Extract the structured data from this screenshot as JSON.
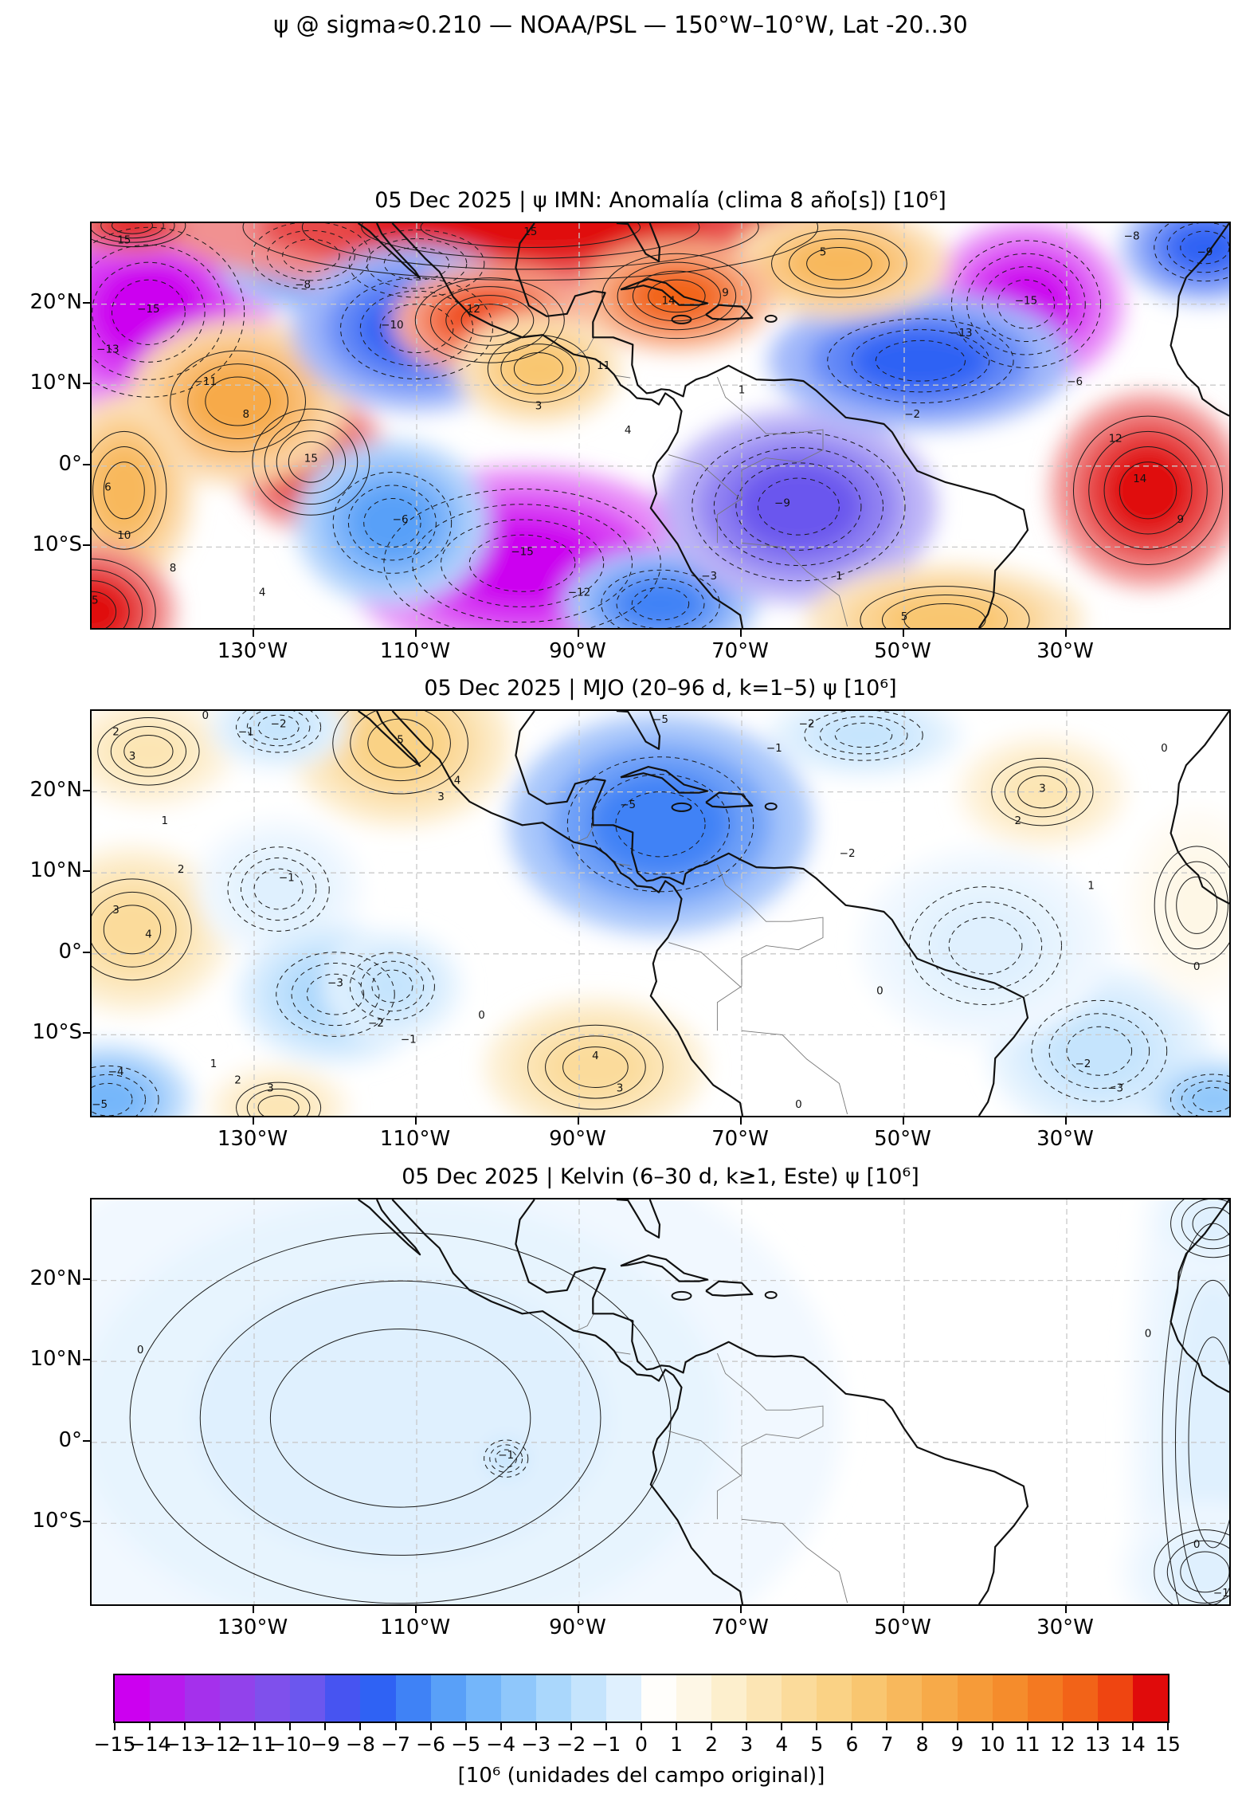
{
  "figure": {
    "main_title": "ψ @ sigma≈0.210 — NOAA/PSL — 150°W–10°W, Lat -20..30"
  },
  "colorbar": {
    "label": "[10⁶ (unidades del campo original)]",
    "tick_labels": [
      "−15",
      "−14",
      "−13",
      "−12",
      "−11",
      "−10",
      "−9",
      "−8",
      "−7",
      "−6",
      "−5",
      "−4",
      "−3",
      "−2",
      "−1",
      "0",
      "1",
      "2",
      "3",
      "4",
      "5",
      "6",
      "7",
      "8",
      "9",
      "10",
      "11",
      "12",
      "13",
      "14",
      "15"
    ],
    "colors": [
      "#CC00F0",
      "#B81AEE",
      "#A530EC",
      "#9242EB",
      "#7F50EC",
      "#6B57EE",
      "#4754F1",
      "#2F62F4",
      "#3F82F6",
      "#59A0F8",
      "#74B6FA",
      "#8FC7FB",
      "#AAD7FC",
      "#C5E4FD",
      "#DFF0FE",
      "#FFFEFB",
      "#FEF7E6",
      "#FDEFCD",
      "#FCE5B4",
      "#FBDB9B",
      "#FAD285",
      "#F9C670",
      "#F8B85C",
      "#F7AA49",
      "#F69B39",
      "#F58C2C",
      "#F47921",
      "#F26318",
      "#EF4511",
      "#E00B0B"
    ]
  },
  "chart_data": {
    "type": "heatmap",
    "subtype": "filled_contour_map",
    "projection": "lon-lat",
    "lon_range": [
      -150,
      -10
    ],
    "lat_range": [
      -20,
      30
    ],
    "contour_levels_range": [
      -15,
      15
    ],
    "contour_level_step": 1,
    "units": "10⁶ (unidades del campo original)",
    "lon_ticks": {
      "values": [
        -130,
        -110,
        -90,
        -70,
        -50,
        -30
      ],
      "labels": [
        "130°W",
        "110°W",
        "90°W",
        "70°W",
        "50°W",
        "30°W"
      ]
    },
    "lat_ticks": {
      "values": [
        20,
        10,
        0,
        -10
      ],
      "labels": [
        "20°N",
        "10°N",
        "0°",
        "10°S"
      ]
    },
    "panels": [
      {
        "id": "anomaly",
        "title": "05 Dec 2025 | ψ IMN: Anomalía (clima 8 año[s]) [10⁶]",
        "features_format": [
          "lon",
          "lat",
          "peak_value_1e6",
          "rx_deg",
          "ry_deg"
        ],
        "features": [
          [
            -143,
            19,
            -15,
            9,
            8
          ],
          [
            -123,
            26,
            -7,
            7,
            4
          ],
          [
            -110,
            25,
            -6,
            8,
            4
          ],
          [
            -96,
            29.5,
            15,
            27,
            5
          ],
          [
            -145,
            29.7,
            14,
            5,
            2
          ],
          [
            -123,
            0.5,
            15,
            5.5,
            5
          ],
          [
            -132,
            8,
            8,
            8,
            6
          ],
          [
            -146,
            -3,
            7,
            5,
            7
          ],
          [
            -150,
            -18,
            15,
            6,
            5
          ],
          [
            -97,
            -12,
            -16,
            13,
            7
          ],
          [
            -113,
            -7,
            -6,
            7,
            6
          ],
          [
            -80,
            -17,
            -7,
            7,
            4
          ],
          [
            -110,
            17,
            -8,
            9,
            6
          ],
          [
            -101,
            18,
            13,
            7,
            4
          ],
          [
            -95,
            12,
            6,
            6,
            4
          ],
          [
            -63,
            -5,
            -10,
            10,
            7
          ],
          [
            -35,
            20,
            -15,
            7,
            6
          ],
          [
            -48,
            13,
            -8,
            11,
            5
          ],
          [
            -20,
            -3,
            15,
            7,
            7
          ],
          [
            -45,
            -19,
            6,
            10,
            4
          ],
          [
            -13,
            27,
            -8,
            6,
            4
          ],
          [
            -58,
            25,
            7,
            8,
            4
          ],
          [
            -78,
            21,
            12,
            7,
            4
          ]
        ],
        "contour_labels": [
          [
            -146,
            27.5,
            "15"
          ],
          [
            -96,
            28.5,
            "15"
          ],
          [
            -123,
            0.5,
            "15"
          ],
          [
            -131,
            6,
            "8"
          ],
          [
            -143,
            19,
            "−15"
          ],
          [
            -148,
            14,
            "−13"
          ],
          [
            -136,
            10,
            "−11"
          ],
          [
            -124,
            22,
            "−8"
          ],
          [
            -113,
            17,
            "−10"
          ],
          [
            -103,
            19,
            "12"
          ],
          [
            -97,
            -11,
            "−15"
          ],
          [
            -90,
            -16,
            "−12"
          ],
          [
            -112,
            -7,
            "−6"
          ],
          [
            -148,
            -3,
            "6"
          ],
          [
            -146,
            -9,
            "10"
          ],
          [
            -150,
            -17,
            "15"
          ],
          [
            -140,
            -13,
            "8"
          ],
          [
            -129,
            -16,
            "4"
          ],
          [
            -65,
            -5,
            "−9"
          ],
          [
            -74,
            -14,
            "−3"
          ],
          [
            -50,
            -19,
            "5"
          ],
          [
            -58,
            -14,
            "1"
          ],
          [
            -35,
            20,
            "−15"
          ],
          [
            -43,
            16,
            "−13"
          ],
          [
            -29,
            10,
            "−6"
          ],
          [
            -49,
            6,
            "−2"
          ],
          [
            -21,
            -2,
            "14"
          ],
          [
            -16,
            -7,
            "9"
          ],
          [
            -24,
            3,
            "12"
          ],
          [
            -13,
            26,
            "−9"
          ],
          [
            -22,
            28,
            "−8"
          ],
          [
            -60,
            26,
            "5"
          ],
          [
            -72,
            21,
            "9"
          ],
          [
            -79,
            20,
            "14"
          ],
          [
            -87,
            12,
            "11"
          ],
          [
            -95,
            7,
            "3"
          ],
          [
            -84,
            4,
            "4"
          ],
          [
            -70,
            9,
            "1"
          ]
        ]
      },
      {
        "id": "mjo",
        "title": "05 Dec 2025 | MJO (20–96 d, k=1–5) ψ [10⁶]",
        "features_format": [
          "lon",
          "lat",
          "peak_value_1e6",
          "rx_deg",
          "ry_deg"
        ],
        "features": [
          [
            -143,
            25,
            3,
            6,
            4
          ],
          [
            -112,
            26,
            5,
            8,
            6
          ],
          [
            -127,
            28,
            -2,
            5,
            3
          ],
          [
            -145,
            3,
            4,
            7,
            6
          ],
          [
            -127,
            8,
            -1,
            6,
            5
          ],
          [
            -120,
            -5,
            -3,
            7,
            5
          ],
          [
            -113,
            -4,
            -2,
            5,
            4
          ],
          [
            -148,
            -18,
            -5,
            6,
            4
          ],
          [
            -127,
            -19,
            3,
            5,
            3
          ],
          [
            -80,
            16,
            -7,
            11,
            8
          ],
          [
            -88,
            -14,
            4,
            8,
            5
          ],
          [
            -33,
            20,
            3,
            6,
            4
          ],
          [
            -26,
            -12,
            -2,
            8,
            6
          ],
          [
            -12,
            -18,
            -4,
            5,
            3
          ],
          [
            -55,
            27,
            -2,
            7,
            3
          ],
          [
            -40,
            1,
            -1,
            9,
            7
          ],
          [
            -14,
            6,
            1,
            5,
            7
          ]
        ],
        "contour_labels": [
          [
            -147,
            27,
            "2"
          ],
          [
            -145,
            24,
            "3"
          ],
          [
            -136,
            29,
            "0"
          ],
          [
            -127,
            28,
            "−2"
          ],
          [
            -131,
            27,
            "−1"
          ],
          [
            -112,
            26,
            "5"
          ],
          [
            -105,
            21,
            "4"
          ],
          [
            -107,
            19,
            "3"
          ],
          [
            -141,
            16,
            "1"
          ],
          [
            -139,
            10,
            "2"
          ],
          [
            -147,
            5,
            "3"
          ],
          [
            -143,
            2,
            "4"
          ],
          [
            -126,
            9,
            "−1"
          ],
          [
            -120,
            -4,
            "−3"
          ],
          [
            -115,
            -9,
            "−2"
          ],
          [
            -111,
            -11,
            "−1"
          ],
          [
            -135,
            -14,
            "1"
          ],
          [
            -132,
            -16,
            "2"
          ],
          [
            -128,
            -17,
            "3"
          ],
          [
            -147,
            -15,
            "−4"
          ],
          [
            -149,
            -19,
            "−5"
          ],
          [
            -88,
            -13,
            "4"
          ],
          [
            -85,
            -17,
            "3"
          ],
          [
            -80,
            28.5,
            "−5"
          ],
          [
            -84,
            18,
            "−5"
          ],
          [
            -62,
            28,
            "−2"
          ],
          [
            -66,
            25,
            "−1"
          ],
          [
            -57,
            12,
            "−2"
          ],
          [
            -28,
            -14,
            "−2"
          ],
          [
            -24,
            -17,
            "−3"
          ],
          [
            -63,
            -19,
            "0"
          ],
          [
            -102,
            -8,
            "0"
          ],
          [
            -33,
            20,
            "3"
          ],
          [
            -36,
            16,
            "2"
          ],
          [
            -27,
            8,
            "1"
          ],
          [
            -14,
            -2,
            "0"
          ],
          [
            -18,
            25,
            "0"
          ],
          [
            -53,
            -5,
            "0"
          ]
        ]
      },
      {
        "id": "kelvin",
        "title": "05 Dec 2025 | Kelvin (6–30 d, k≥1, Este) ψ [10⁶]",
        "features_format": [
          "lon",
          "lat",
          "peak_value_1e6",
          "rx_deg",
          "ry_deg"
        ],
        "features": [
          [
            -112,
            3,
            -0.6,
            32,
            22
          ],
          [
            -99,
            -2,
            -1.2,
            2.6,
            2.2
          ],
          [
            -12,
            0,
            -0.6,
            6,
            26
          ],
          [
            -13,
            -16,
            -0.8,
            6,
            5
          ],
          [
            -12,
            27,
            -0.5,
            5,
            4
          ]
        ],
        "contour_labels": [
          [
            -144,
            11,
            "0"
          ],
          [
            -99,
            -2,
            "−1"
          ],
          [
            -20,
            13,
            "0"
          ],
          [
            -14,
            -13,
            "0"
          ],
          [
            -11,
            -19,
            "−1"
          ]
        ]
      }
    ]
  }
}
